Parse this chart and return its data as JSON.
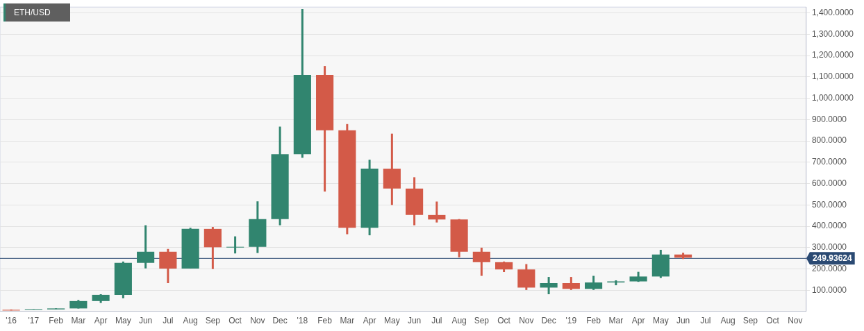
{
  "chart_data": {
    "type": "candlestick",
    "title": "ETH/USD",
    "categories": [
      "'16",
      "'17",
      "Feb",
      "Mar",
      "Apr",
      "May",
      "Jun",
      "Jul",
      "Aug",
      "Sep",
      "Oct",
      "Nov",
      "Dec",
      "'18",
      "Feb",
      "Mar",
      "Apr",
      "May",
      "Jun",
      "Jul",
      "Aug",
      "Sep",
      "Oct",
      "Nov",
      "Dec",
      "'19",
      "Feb",
      "Mar",
      "Apr",
      "May",
      "Jun",
      "Jul",
      "Aug",
      "Sep",
      "Oct",
      "Nov"
    ],
    "ohlc": [
      [
        9,
        10,
        6,
        7
      ],
      [
        8,
        11,
        8,
        10.7
      ],
      [
        10.7,
        16,
        10.5,
        15.5
      ],
      [
        15.6,
        55,
        15,
        50
      ],
      [
        50,
        82,
        41,
        79
      ],
      [
        79,
        235,
        63,
        229
      ],
      [
        229,
        405,
        203,
        281
      ],
      [
        281,
        294,
        134,
        202
      ],
      [
        202,
        393,
        202,
        388
      ],
      [
        388,
        397,
        200,
        302
      ],
      [
        302,
        353,
        273,
        304
      ],
      [
        304,
        517,
        275,
        434
      ],
      [
        434,
        867,
        405,
        738
      ],
      [
        738,
        1418,
        721,
        1109
      ],
      [
        1109,
        1151,
        563,
        850
      ],
      [
        850,
        879,
        363,
        393
      ],
      [
        393,
        712,
        358,
        670
      ],
      [
        670,
        834,
        500,
        577
      ],
      [
        577,
        630,
        405,
        453
      ],
      [
        453,
        516,
        418,
        432
      ],
      [
        432,
        434,
        255,
        281
      ],
      [
        281,
        300,
        168,
        232
      ],
      [
        232,
        235,
        186,
        198
      ],
      [
        198,
        223,
        102,
        113
      ],
      [
        113,
        163,
        82,
        134
      ],
      [
        134,
        163,
        102,
        107
      ],
      [
        107,
        168,
        102,
        137
      ],
      [
        137,
        147,
        124,
        142
      ],
      [
        142,
        187,
        140,
        165
      ],
      [
        165,
        290,
        158,
        268
      ],
      [
        268,
        276,
        247,
        253
      ],
      null,
      null,
      null,
      null,
      null
    ],
    "colors": [
      "#d35a48",
      "#31856f",
      "#31856f",
      "#31856f",
      "#31856f",
      "#31856f",
      "#31856f",
      "#d35a48",
      "#31856f",
      "#d35a48",
      "#31856f",
      "#31856f",
      "#31856f",
      "#31856f",
      "#d35a48",
      "#d35a48",
      "#31856f",
      "#d35a48",
      "#d35a48",
      "#d35a48",
      "#d35a48",
      "#d35a48",
      "#d35a48",
      "#d35a48",
      "#31856f",
      "#d35a48",
      "#31856f",
      "#31856f",
      "#31856f",
      "#31856f",
      "#d35a48",
      null,
      null,
      null,
      null,
      null
    ],
    "ylim": [
      2,
      1427
    ],
    "yticks": [
      {
        "value": 100,
        "label": "100.0000"
      },
      {
        "value": 200,
        "label": "200.0000"
      },
      {
        "value": 300,
        "label": "300.0000"
      },
      {
        "value": 400,
        "label": "400.0000"
      },
      {
        "value": 500,
        "label": "500.0000"
      },
      {
        "value": 600,
        "label": "600.0000"
      },
      {
        "value": 700,
        "label": "700.0000"
      },
      {
        "value": 800,
        "label": "800.0000"
      },
      {
        "value": 900,
        "label": "900.0000"
      },
      {
        "value": 1000,
        "label": "1,000.0000"
      },
      {
        "value": 1100,
        "label": "1,100.0000"
      },
      {
        "value": 1200,
        "label": "1,200.0000"
      },
      {
        "value": 1300,
        "label": "1,300.0000"
      },
      {
        "value": 1400,
        "label": "1,400.0000"
      }
    ],
    "ref_lines": [
      {
        "axis": "y",
        "value": 249.93624,
        "label": "249.93624",
        "color": "#2b4a73"
      }
    ],
    "grid": "y",
    "legend": false
  }
}
